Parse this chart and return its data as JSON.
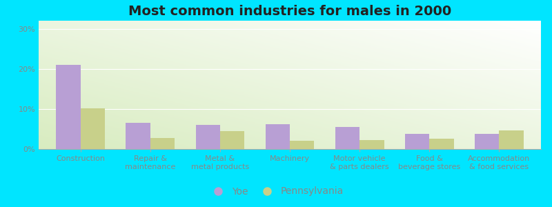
{
  "title": "Most common industries for males in 2000",
  "categories": [
    "Construction",
    "Repair &\nmaintenance",
    "Metal &\nmetal products",
    "Machinery",
    "Motor vehicle\n& parts dealers",
    "Food &\nbeverage stores",
    "Accommodation\n& food services"
  ],
  "yoe_values": [
    21.0,
    6.5,
    6.0,
    6.2,
    5.5,
    3.8,
    3.7
  ],
  "pa_values": [
    10.2,
    2.8,
    4.5,
    2.0,
    2.2,
    2.5,
    4.7
  ],
  "yoe_color": "#b89fd4",
  "pa_color": "#c8d08a",
  "bar_width": 0.35,
  "ylim": [
    0,
    32
  ],
  "yticks": [
    0,
    10,
    20,
    30
  ],
  "ytick_labels": [
    "0%",
    "10%",
    "20%",
    "30%"
  ],
  "legend_labels": [
    "Yoe",
    "Pennsylvania"
  ],
  "bg_gradient_top_right": "#e8f8f8",
  "bg_gradient_bottom_left": "#d8ecc0",
  "outer_bg": "#00e5ff",
  "title_fontsize": 14,
  "axis_label_fontsize": 8,
  "legend_fontsize": 10,
  "tick_color": "#888888"
}
